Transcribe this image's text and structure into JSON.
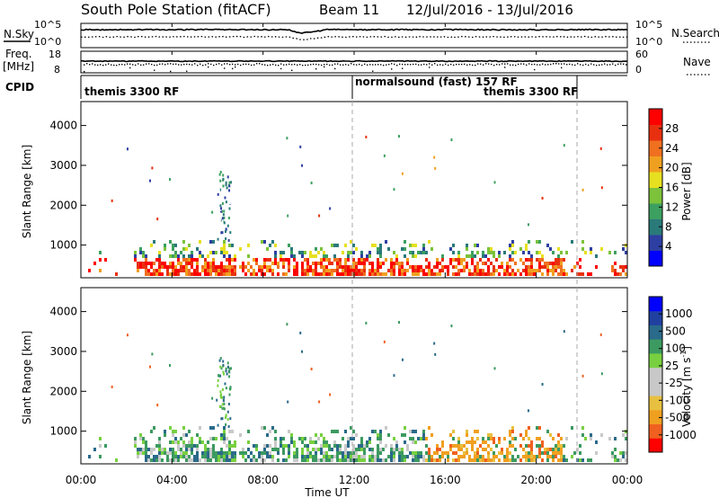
{
  "header": {
    "station": "South Pole Station (fitACF)",
    "beam": "Beam 11",
    "dates": "12/Jul/2016 - 13/Jul/2016"
  },
  "left_labels": {
    "nsky": "N.Sky",
    "freq": "Freq.",
    "freq_unit": "[MHz]",
    "cpid": "CPID"
  },
  "right_labels": {
    "nsearch": "N.Search",
    "nave": "Nave"
  },
  "noise_axis": {
    "left_top": "10^5",
    "left_bottom": "10^0",
    "right_top": "10^5",
    "right_bottom": "10^0"
  },
  "freq_axis": {
    "top": "18",
    "bottom": "8",
    "nave_top": "60",
    "nave_bottom": "0"
  },
  "cpid": {
    "modes": [
      "themis 3300 RF",
      "normalsound (fast) 157 RF",
      "themis 3300 RF"
    ]
  },
  "chart_data": [
    {
      "type": "heatmap",
      "name": "power",
      "ylabel": "Slant Range [km]",
      "yticks": [
        "1000",
        "2000",
        "3000",
        "4000"
      ],
      "ylim": [
        180,
        4600
      ],
      "colorbar": {
        "label": "Power [dB]",
        "ticks": [
          "4",
          "8",
          "12",
          "16",
          "20",
          "24",
          "28"
        ],
        "range": [
          0,
          30
        ],
        "colors": [
          "#0000ff",
          "#2e3fa3",
          "#2a7a7a",
          "#3ca060",
          "#7cc23a",
          "#e6e020",
          "#f0a020",
          "#f07020",
          "#e83010",
          "#ff0000"
        ]
      }
    },
    {
      "type": "heatmap",
      "name": "velocity",
      "ylabel": "Slant Range [km]",
      "yticks": [
        "1000",
        "2000",
        "3000",
        "4000"
      ],
      "ylim": [
        180,
        4600
      ],
      "xlabel": "Time UT",
      "xticks": [
        "00:00",
        "04:00",
        "08:00",
        "12:00",
        "16:00",
        "20:00",
        "00:00"
      ],
      "colorbar": {
        "label": "Velocity [m s^-1]",
        "label_main": "Velocity [m s",
        "label_sup": "-1",
        "label_end": "]",
        "ticks": [
          "1000",
          "500",
          "100",
          "25",
          "-25",
          "-100",
          "-500",
          "-1000"
        ],
        "range": [
          -1200,
          1200
        ],
        "colors": [
          "#ff0000",
          "#f06020",
          "#f0a020",
          "#e8c040",
          "#c8c8c8",
          "#c8c8c8",
          "#78d040",
          "#3c9a60",
          "#2a6a8a",
          "#2040a0",
          "#0000ff"
        ]
      }
    }
  ]
}
